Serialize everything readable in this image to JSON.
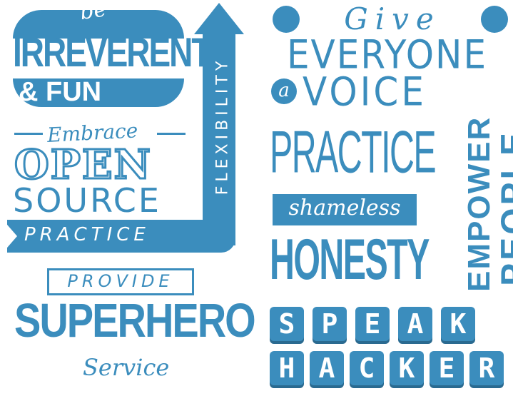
{
  "colors": {
    "accent": "#3b8dbd",
    "background": "#ffffff"
  },
  "values": {
    "be": "be",
    "irreverent": "IRREVERENT",
    "fun": "& FUN",
    "flexibility": "FLEXIBILITY",
    "practice_flex": "PRACTICE",
    "embrace": "Embrace",
    "open": "OPEN",
    "source": "SOURCE",
    "provide": "PROVIDE",
    "superhero": "SUPERHERO",
    "service": "Service",
    "give": "Give",
    "everyone": "EVERYONE",
    "a": "a",
    "voice": "VOICE",
    "practice_honesty": "PRACTICE",
    "shameless": "shameless",
    "honesty": "HONESTY",
    "empower": "EMPOWER",
    "people": "PEOPLE",
    "speak_letters": [
      "S",
      "P",
      "E",
      "A",
      "K"
    ],
    "hacker_letters": [
      "H",
      "A",
      "C",
      "K",
      "E",
      "R"
    ]
  }
}
